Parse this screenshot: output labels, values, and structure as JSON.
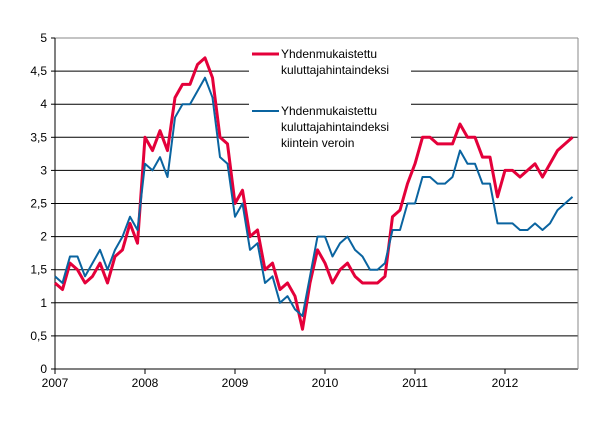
{
  "chart_data": {
    "type": "line",
    "title": "",
    "xlabel": "",
    "ylabel": "",
    "ylim": [
      0,
      5
    ],
    "y_ticks": [
      "0",
      "0,5",
      "1",
      "1,5",
      "2",
      "2,5",
      "3",
      "3,5",
      "4",
      "4,5",
      "5"
    ],
    "x_ticks": [
      "2007",
      "2008",
      "2009",
      "2010",
      "2011",
      "2012"
    ],
    "x_start": "2007-01",
    "x_end": "2012-10",
    "frequency": "monthly",
    "grid": "horizontal",
    "legend_position": "top-center",
    "series": [
      {
        "name": "Yhdenmukaistettu kuluttajahintaindeksi",
        "name_lines": [
          "Yhdenmukaistettu",
          "kuluttajahintaindeksi"
        ],
        "color": "#e4003a",
        "values": [
          1.3,
          1.2,
          1.6,
          1.5,
          1.3,
          1.4,
          1.6,
          1.3,
          1.7,
          1.8,
          2.2,
          1.9,
          3.5,
          3.3,
          3.6,
          3.3,
          4.1,
          4.3,
          4.3,
          4.6,
          4.7,
          4.4,
          3.5,
          3.4,
          2.5,
          2.7,
          2.0,
          2.1,
          1.5,
          1.6,
          1.2,
          1.3,
          1.1,
          0.6,
          1.3,
          1.8,
          1.6,
          1.3,
          1.5,
          1.6,
          1.4,
          1.3,
          1.3,
          1.3,
          1.4,
          2.3,
          2.4,
          2.8,
          3.1,
          3.5,
          3.5,
          3.4,
          3.4,
          3.4,
          3.7,
          3.5,
          3.5,
          3.2,
          3.2,
          2.6,
          3.0,
          3.0,
          2.9,
          3.0,
          3.1,
          2.9,
          3.1,
          3.3,
          3.4,
          3.5
        ]
      },
      {
        "name": "Yhdenmukaistettu kuluttajahintaindeksi kiintein veroin",
        "name_lines": [
          "Yhdenmukaistettu",
          "kuluttajahintaindeksi",
          "kiintein veroin"
        ],
        "color": "#0a64a0",
        "values": [
          1.4,
          1.3,
          1.7,
          1.7,
          1.4,
          1.6,
          1.8,
          1.5,
          1.8,
          2.0,
          2.3,
          2.1,
          3.1,
          3.0,
          3.2,
          2.9,
          3.8,
          4.0,
          4.0,
          4.2,
          4.4,
          4.1,
          3.2,
          3.1,
          2.3,
          2.5,
          1.8,
          1.9,
          1.3,
          1.4,
          1.0,
          1.1,
          0.9,
          0.8,
          1.4,
          2.0,
          2.0,
          1.7,
          1.9,
          2.0,
          1.8,
          1.7,
          1.5,
          1.5,
          1.6,
          2.1,
          2.1,
          2.5,
          2.5,
          2.9,
          2.9,
          2.8,
          2.8,
          2.9,
          3.3,
          3.1,
          3.1,
          2.8,
          2.8,
          2.2,
          2.2,
          2.2,
          2.1,
          2.1,
          2.2,
          2.1,
          2.2,
          2.4,
          2.5,
          2.6
        ]
      }
    ]
  }
}
